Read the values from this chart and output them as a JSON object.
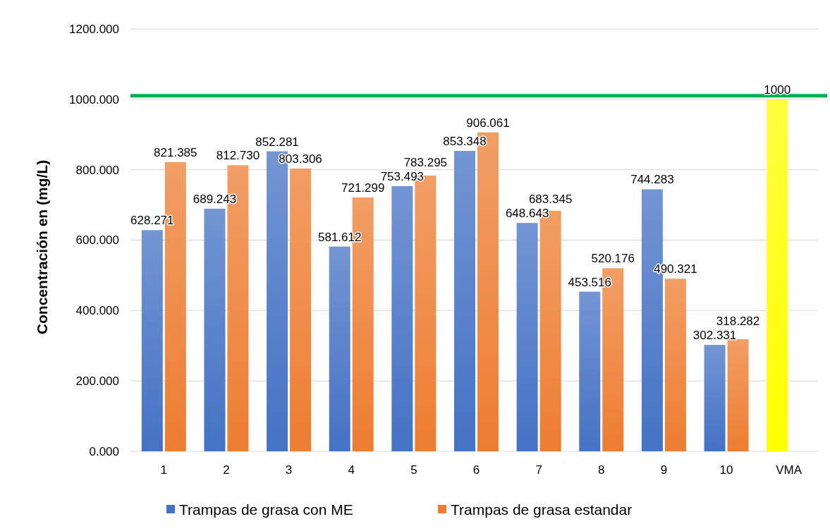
{
  "chart_data": {
    "type": "bar",
    "ylabel": "Concentración en (mg/L)",
    "categories": [
      "1",
      "2",
      "3",
      "4",
      "5",
      "6",
      "7",
      "8",
      "9",
      "10",
      "VMA"
    ],
    "series": [
      {
        "name": "Trampas de grasa con ME",
        "color": "#4472c4",
        "colors": [
          "#4472c4",
          "#4472c4",
          "#4472c4",
          "#4472c4",
          "#4472c4",
          "#4472c4",
          "#4472c4",
          "#4472c4",
          "#4472c4",
          "#4472c4",
          "#ffff00"
        ],
        "values": [
          628.271,
          689.243,
          852.281,
          581.612,
          753.493,
          853.348,
          648.643,
          453.516,
          744.283,
          302.331,
          1000
        ],
        "value_labels": [
          "628.271",
          "689.243",
          "852.281",
          "581.612",
          "753.493",
          "853.348",
          "648.643",
          "453.516",
          "744.283",
          "302.331",
          "1000"
        ]
      },
      {
        "name": "Trampas de grasa estandar",
        "color": "#ed7d31",
        "values": [
          821.385,
          812.73,
          803.306,
          721.299,
          783.295,
          906.061,
          683.345,
          520.176,
          490.321,
          318.282,
          null
        ],
        "value_labels": [
          "821.385",
          "812.730",
          "803.306",
          "721.299",
          "783.295",
          "906.061",
          "683.345",
          "520.176",
          "490.321",
          "318.282",
          null
        ]
      }
    ],
    "ylim": [
      0,
      1200
    ],
    "yticks": [
      {
        "value": 0,
        "label": "0.000"
      },
      {
        "value": 200,
        "label": "200.000"
      },
      {
        "value": 400,
        "label": "400.000"
      },
      {
        "value": 600,
        "label": "600.000"
      },
      {
        "value": 800,
        "label": "800.000"
      },
      {
        "value": 1000,
        "label": "1000.000"
      },
      {
        "value": 1200,
        "label": "1200.000"
      }
    ],
    "grid": "y",
    "legend": "bottom",
    "ref_lines": [
      {
        "axis": "y",
        "value": 1010,
        "color": "#00b050"
      }
    ]
  }
}
